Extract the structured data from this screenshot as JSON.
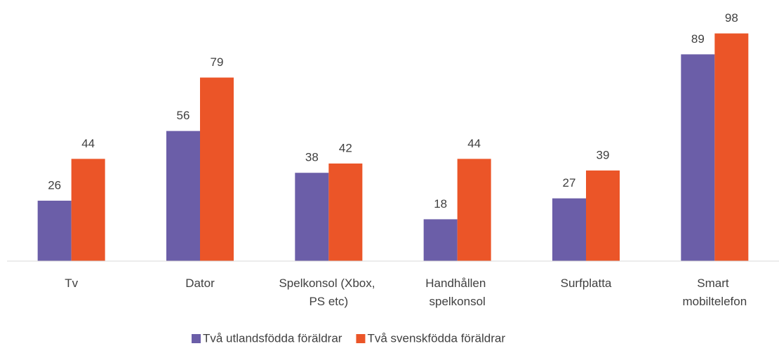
{
  "chart_data": {
    "type": "bar",
    "categories": [
      "Tv",
      "Dator",
      "Spelkonsol (Xbox, PS etc)",
      "Handhållen spelkonsol",
      "Surfplatta",
      "Smart mobiltelefon"
    ],
    "series": [
      {
        "name": "Två utlandsfödda föräldrar",
        "color": "#6b5ea8",
        "values": [
          26,
          56,
          38,
          18,
          27,
          89
        ]
      },
      {
        "name": "Två svenskfödda föräldrar",
        "color": "#eb5528",
        "values": [
          44,
          79,
          42,
          44,
          39,
          98
        ]
      }
    ],
    "ylim": [
      0,
      100
    ],
    "legend": "bottom"
  }
}
